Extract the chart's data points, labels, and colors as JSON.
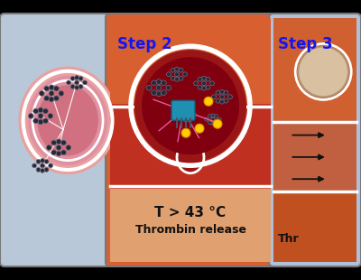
{
  "fig_width": 4.0,
  "fig_height": 3.1,
  "dpi": 100,
  "bg_color": "#000000",
  "panel1": {
    "bg": "#b8c8d8",
    "border_color": "#777777",
    "vessel_outer_color": "#e89090",
    "vessel_mid_color": "#e0a0a0",
    "vessel_inner_color": "#d08080",
    "white_line": "#ffffff"
  },
  "panel2": {
    "bg_orange": "#d86030",
    "bg_skin": "#e8a880",
    "aneurysm_outer": "#c03030",
    "aneurysm_inner": "#8b1010",
    "white_lining": "#ffffff",
    "label": "Step 2",
    "label_color": "#1515ee",
    "text1": "T > 43 °C",
    "text2": "Thrombin release",
    "text_color": "#111111"
  },
  "panel3": {
    "bg_blue": "#b0c0d8",
    "vessel_top": "#d06030",
    "vessel_bot": "#c05020",
    "vessel_inner": "#c07050",
    "white_lining": "#ffffff",
    "label": "Step 3",
    "label_color": "#1515ee",
    "text1": "Thr",
    "text_color": "#111111"
  }
}
